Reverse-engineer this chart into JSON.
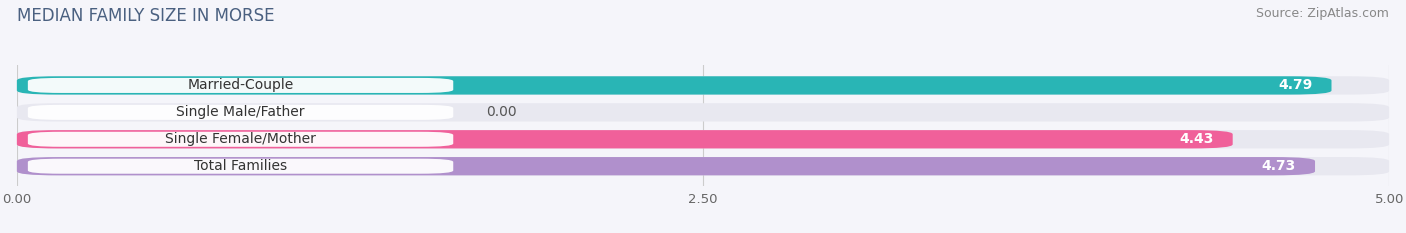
{
  "title": "MEDIAN FAMILY SIZE IN MORSE",
  "source": "Source: ZipAtlas.com",
  "categories": [
    "Married-Couple",
    "Single Male/Father",
    "Single Female/Mother",
    "Total Families"
  ],
  "values": [
    4.79,
    0.0,
    4.43,
    4.73
  ],
  "bar_colors": [
    "#29b5b5",
    "#a0b0e8",
    "#f0609a",
    "#b090cc"
  ],
  "xlim": [
    0,
    5.0
  ],
  "xticks": [
    0.0,
    2.5,
    5.0
  ],
  "xtick_labels": [
    "0.00",
    "2.50",
    "5.00"
  ],
  "bar_height": 0.68,
  "label_fontsize": 10,
  "value_fontsize": 10,
  "title_fontsize": 12,
  "source_fontsize": 9,
  "bg_color": "#f5f5fa",
  "bar_bg_color": "#e8e8f0",
  "label_bg_color": "#ffffff"
}
